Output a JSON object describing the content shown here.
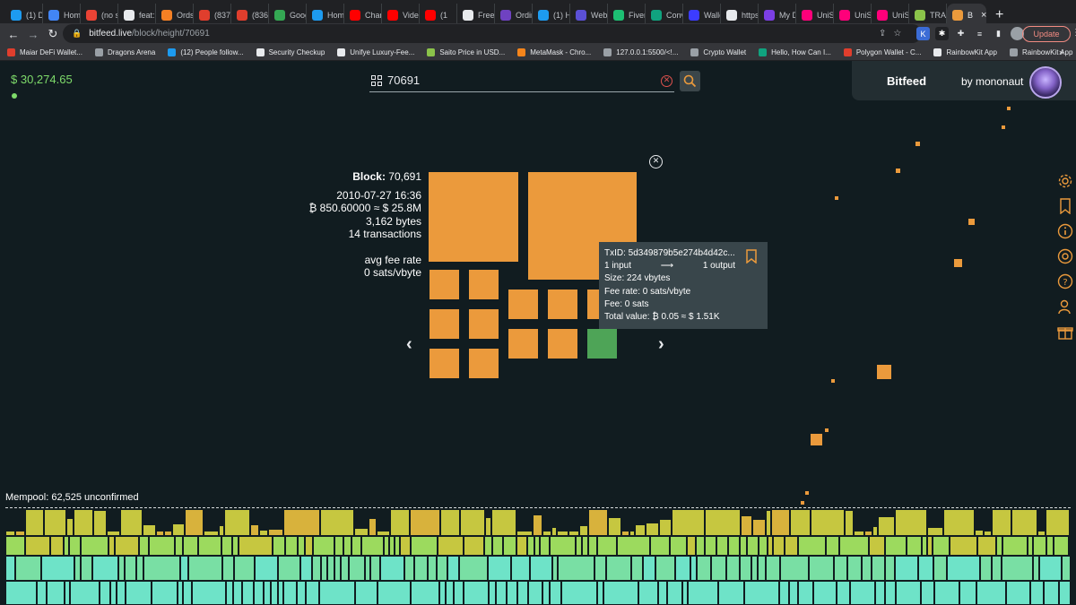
{
  "browser": {
    "tabs": [
      {
        "label": "(1) D",
        "color": "#1d9bf0"
      },
      {
        "label": "Hom",
        "color": "#4285f4"
      },
      {
        "label": "(no s",
        "color": "#ea4335"
      },
      {
        "label": "feat:",
        "color": "#e8eaed"
      },
      {
        "label": "Ords",
        "color": "#f48024"
      },
      {
        "label": "(837",
        "color": "#e03e2d"
      },
      {
        "label": "(836",
        "color": "#e03e2d"
      },
      {
        "label": "Goog",
        "color": "#34a853"
      },
      {
        "label": "Hom",
        "color": "#1d9bf0"
      },
      {
        "label": "Chan",
        "color": "#ff0000"
      },
      {
        "label": "Vide",
        "color": "#ff0000"
      },
      {
        "label": "(1",
        "color": "#ff0000"
      },
      {
        "label": "Free",
        "color": "#e8eaed"
      },
      {
        "label": "Ordir",
        "color": "#6f42c1"
      },
      {
        "label": "(1) H",
        "color": "#1d9bf0"
      },
      {
        "label": "Webl",
        "color": "#5b50d6"
      },
      {
        "label": "Fiverr",
        "color": "#1dbf73"
      },
      {
        "label": "Conv",
        "color": "#10a37f"
      },
      {
        "label": "Walle",
        "color": "#3c3cff"
      },
      {
        "label": "https",
        "color": "#e8eaed"
      },
      {
        "label": "My D",
        "color": "#7b3fe4"
      },
      {
        "label": "UniS",
        "color": "#ff007a"
      },
      {
        "label": "UniS",
        "color": "#ff007a"
      },
      {
        "label": "UniS",
        "color": "#ff007a"
      },
      {
        "label": "TRAC",
        "color": "#8bc34a"
      }
    ],
    "active_tab": {
      "label": "B",
      "close": "×"
    },
    "new_tab": "+",
    "address": {
      "host": "bitfeed.live",
      "path": "/block/height/70691"
    },
    "update_label": "Update",
    "bookmarks": [
      {
        "label": "Maiar DeFi Wallet...",
        "color": "#e03e2d"
      },
      {
        "label": "Dragons Arena",
        "color": "#9aa0a6"
      },
      {
        "label": "(12) People follow...",
        "color": "#1d9bf0"
      },
      {
        "label": "Security Checkup",
        "color": "#e8eaed"
      },
      {
        "label": "Unifye Luxury-Fee...",
        "color": "#e8eaed"
      },
      {
        "label": "Saito Price in USD...",
        "color": "#8bc34a"
      },
      {
        "label": "MetaMask - Chro...",
        "color": "#f6851b"
      },
      {
        "label": "127.0.0.1:5500/<!...",
        "color": "#9aa0a6"
      },
      {
        "label": "Crypto Wallet",
        "color": "#9aa0a6"
      },
      {
        "label": "Hello, How Can I...",
        "color": "#10a37f"
      },
      {
        "label": "Polygon Wallet - C...",
        "color": "#e03e2d"
      },
      {
        "label": "RainbowKit App",
        "color": "#e8eaed"
      },
      {
        "label": "RainbowKit App",
        "color": "#9aa0a6"
      }
    ]
  },
  "header": {
    "price": "$ 30,274.65",
    "search_value": "70691",
    "brand_title": "Bitfeed",
    "brand_by": "by mononaut"
  },
  "block": {
    "block_label": "Block:",
    "height": "70,691",
    "time": "2010-07-27 16:36",
    "value": "₿ 850.60000 ≈ $ 25.8M",
    "size": "3,162 bytes",
    "tx_count": "14 transactions",
    "fee_label": "avg fee rate",
    "fee_value": "0 sats/vbyte"
  },
  "tooltip": {
    "txid": "TxID: 5d349879b5e274b4d42c...",
    "inputs": "1 input",
    "arrow": "⟶",
    "outputs": "1 output",
    "size": "Size: 224 vbytes",
    "fee_rate": "Fee rate: 0 sats/vbyte",
    "fee": "Fee: 0 sats",
    "total": "Total value: ₿ 0.05 ≈ $ 1.51K"
  },
  "mempool": {
    "label": "Mempool: 62,525 unconfirmed",
    "colors": [
      "#6ee3c8",
      "#79dfa4",
      "#9cda5e",
      "#c6c740",
      "#d8b23c"
    ]
  },
  "accent": "#eb9a3c",
  "sidebar_icons": [
    "gear-icon",
    "bookmark-icon",
    "info-icon",
    "at-icon",
    "help-icon",
    "people-icon",
    "gift-icon"
  ]
}
